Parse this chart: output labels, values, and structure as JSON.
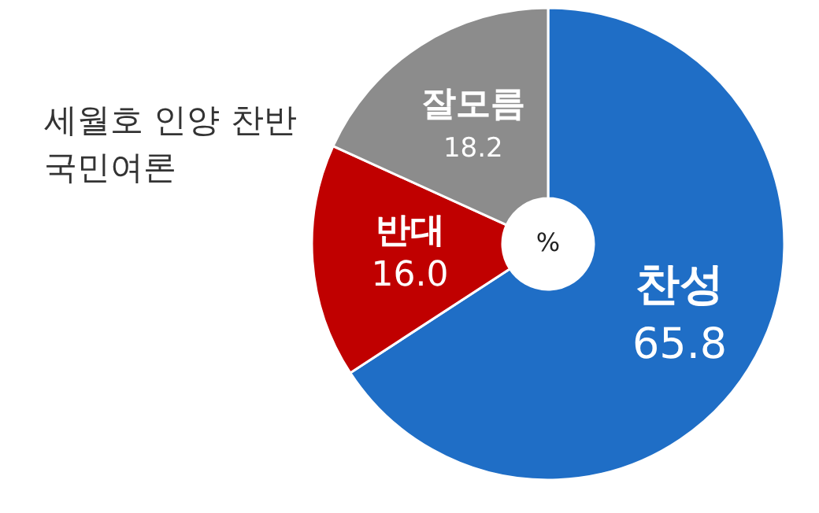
{
  "chart_data": {
    "type": "donut",
    "title": "세월호 인양 찬반 국민여론",
    "categories": [
      "찬성",
      "반대",
      "잘모름"
    ],
    "values": [
      65.8,
      16.0,
      18.2
    ],
    "value_labels": [
      "65.8",
      "16.0",
      "18.2"
    ],
    "colors": [
      "#1f6ec6",
      "#c00000",
      "#8c8c8c"
    ],
    "annotations": [
      "%"
    ]
  }
}
